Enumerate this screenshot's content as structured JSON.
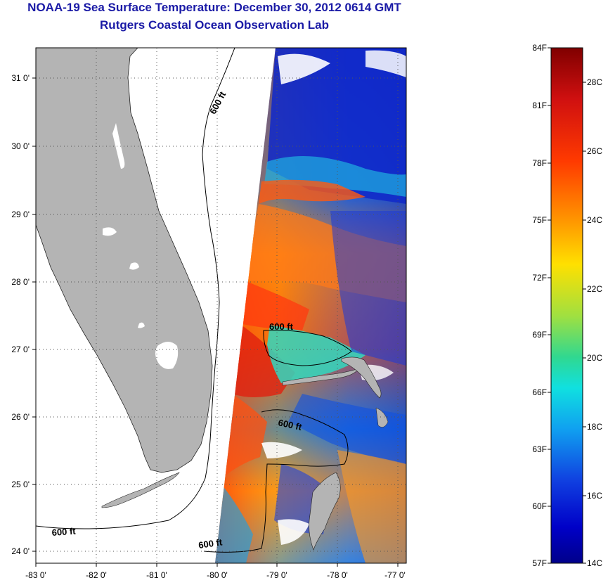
{
  "title": "NOAA-19 Sea Surface Temperature:  December 30, 2012 0614 GMT",
  "subtitle": "Rutgers Coastal Ocean Observation Lab",
  "map": {
    "lon_ticks": [
      "-83 0'",
      "-82 0'",
      "-81 0'",
      "-80 0'",
      "-79 0'",
      "-78 0'",
      "-77 0'"
    ],
    "lat_ticks": [
      "24 0'",
      "25 0'",
      "26 0'",
      "27 0'",
      "28 0'",
      "29 0'",
      "30 0'",
      "31 0'"
    ],
    "contour_label": "600 ft",
    "colors": {
      "land": "#b4b4b4",
      "no_data": "#ffffff",
      "grid": "#555555"
    }
  },
  "colorbar": {
    "fahrenheit_labels": [
      "84F",
      "81F",
      "78F",
      "75F",
      "72F",
      "69F",
      "66F",
      "63F",
      "60F",
      "57F"
    ],
    "celsius_labels": [
      "28C",
      "26C",
      "24C",
      "22C",
      "20C",
      "18C",
      "16C",
      "14C"
    ]
  }
}
